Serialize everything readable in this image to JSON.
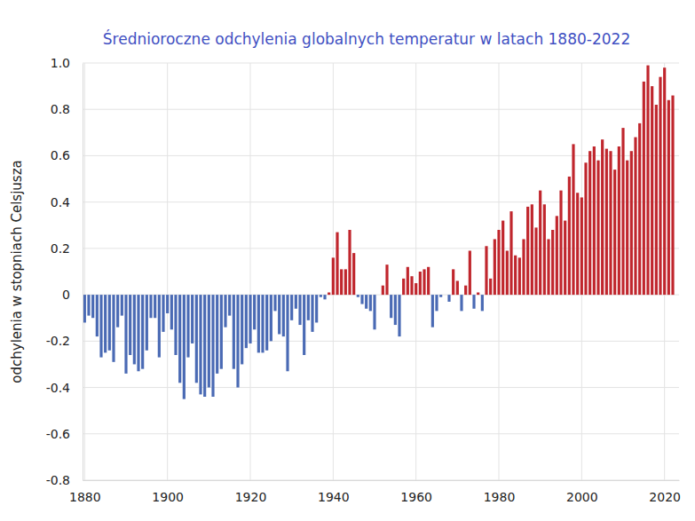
{
  "chart_data": {
    "type": "bar",
    "title": "Średnioroczne odchylenia globalnych temperatur w latach 1880-2022",
    "y_label": "odchylenia w stopniach Celsjusza",
    "x": [
      1880,
      1881,
      1882,
      1883,
      1884,
      1885,
      1886,
      1887,
      1888,
      1889,
      1890,
      1891,
      1892,
      1893,
      1894,
      1895,
      1896,
      1897,
      1898,
      1899,
      1900,
      1901,
      1902,
      1903,
      1904,
      1905,
      1906,
      1907,
      1908,
      1909,
      1910,
      1911,
      1912,
      1913,
      1914,
      1915,
      1916,
      1917,
      1918,
      1919,
      1920,
      1921,
      1922,
      1923,
      1924,
      1925,
      1926,
      1927,
      1928,
      1929,
      1930,
      1931,
      1932,
      1933,
      1934,
      1935,
      1936,
      1937,
      1938,
      1939,
      1940,
      1941,
      1942,
      1943,
      1944,
      1945,
      1946,
      1947,
      1948,
      1949,
      1950,
      1951,
      1952,
      1953,
      1954,
      1955,
      1956,
      1957,
      1958,
      1959,
      1960,
      1961,
      1962,
      1963,
      1964,
      1965,
      1966,
      1967,
      1968,
      1969,
      1970,
      1971,
      1972,
      1973,
      1974,
      1975,
      1976,
      1977,
      1978,
      1979,
      1980,
      1981,
      1982,
      1983,
      1984,
      1985,
      1986,
      1987,
      1988,
      1989,
      1990,
      1991,
      1992,
      1993,
      1994,
      1995,
      1996,
      1997,
      1998,
      1999,
      2000,
      2001,
      2002,
      2003,
      2004,
      2005,
      2006,
      2007,
      2008,
      2009,
      2010,
      2011,
      2012,
      2013,
      2014,
      2015,
      2016,
      2017,
      2018,
      2019,
      2020,
      2021,
      2022
    ],
    "values": [
      -0.12,
      -0.09,
      -0.1,
      -0.18,
      -0.27,
      -0.25,
      -0.24,
      -0.29,
      -0.14,
      -0.09,
      -0.34,
      -0.26,
      -0.3,
      -0.33,
      -0.32,
      -0.24,
      -0.1,
      -0.1,
      -0.27,
      -0.16,
      -0.08,
      -0.15,
      -0.26,
      -0.38,
      -0.45,
      -0.27,
      -0.21,
      -0.38,
      -0.43,
      -0.44,
      -0.4,
      -0.44,
      -0.34,
      -0.32,
      -0.14,
      -0.09,
      -0.32,
      -0.4,
      -0.3,
      -0.23,
      -0.21,
      -0.15,
      -0.25,
      -0.25,
      -0.24,
      -0.2,
      -0.07,
      -0.17,
      -0.18,
      -0.33,
      -0.11,
      -0.06,
      -0.13,
      -0.26,
      -0.11,
      -0.16,
      -0.12,
      -0.01,
      -0.02,
      0.01,
      0.16,
      0.27,
      0.11,
      0.11,
      0.28,
      0.18,
      -0.01,
      -0.04,
      -0.06,
      -0.07,
      -0.15,
      0.0,
      0.04,
      0.13,
      -0.1,
      -0.13,
      -0.18,
      0.07,
      0.12,
      0.08,
      0.05,
      0.1,
      0.11,
      0.12,
      -0.14,
      -0.07,
      -0.01,
      0.0,
      -0.03,
      0.11,
      0.06,
      -0.07,
      0.04,
      0.19,
      -0.06,
      0.01,
      -0.07,
      0.21,
      0.07,
      0.24,
      0.28,
      0.32,
      0.19,
      0.36,
      0.17,
      0.16,
      0.24,
      0.38,
      0.39,
      0.29,
      0.45,
      0.39,
      0.24,
      0.28,
      0.34,
      0.45,
      0.32,
      0.51,
      0.65,
      0.44,
      0.42,
      0.57,
      0.62,
      0.64,
      0.58,
      0.67,
      0.63,
      0.62,
      0.54,
      0.64,
      0.72,
      0.58,
      0.62,
      0.68,
      0.74,
      0.92,
      0.99,
      0.9,
      0.82,
      0.94,
      0.98,
      0.84,
      0.86
    ],
    "colors": [
      "#4a6ab4",
      "#4a6ab4",
      "#4a6ab4",
      "#4a6ab4",
      "#4a6ab4",
      "#4a6ab4",
      "#4a6ab4",
      "#4a6ab4",
      "#4a6ab4",
      "#4a6ab4",
      "#4a6ab4",
      "#4a6ab4",
      "#4a6ab4",
      "#4a6ab4",
      "#4a6ab4",
      "#4a6ab4",
      "#4a6ab4",
      "#4a6ab4",
      "#4a6ab4",
      "#4a6ab4",
      "#4a6ab4",
      "#4a6ab4",
      "#4a6ab4",
      "#4a6ab4",
      "#4a6ab4",
      "#4a6ab4",
      "#4a6ab4",
      "#4a6ab4",
      "#4a6ab4",
      "#4a6ab4",
      "#4a6ab4",
      "#4a6ab4",
      "#4a6ab4",
      "#4a6ab4",
      "#4a6ab4",
      "#4a6ab4",
      "#4a6ab4",
      "#4a6ab4",
      "#4a6ab4",
      "#4a6ab4",
      "#4a6ab4",
      "#4a6ab4",
      "#4a6ab4",
      "#4a6ab4",
      "#4a6ab4",
      "#4a6ab4",
      "#4a6ab4",
      "#4a6ab4",
      "#4a6ab4",
      "#4a6ab4",
      "#4a6ab4",
      "#4a6ab4",
      "#4a6ab4",
      "#4a6ab4",
      "#4a6ab4",
      "#4a6ab4",
      "#4a6ab4",
      "#4a6ab4",
      "#4a6ab4",
      "#c0262d",
      "#c0262d",
      "#c0262d",
      "#c0262d",
      "#c0262d",
      "#c0262d",
      "#c0262d",
      "#4a6ab4",
      "#4a6ab4",
      "#4a6ab4",
      "#4a6ab4",
      "#4a6ab4",
      "#c0262d",
      "#c0262d",
      "#c0262d",
      "#4a6ab4",
      "#4a6ab4",
      "#4a6ab4",
      "#c0262d",
      "#c0262d",
      "#c0262d",
      "#c0262d",
      "#c0262d",
      "#c0262d",
      "#c0262d",
      "#4a6ab4",
      "#4a6ab4",
      "#4a6ab4",
      "#c0262d",
      "#4a6ab4",
      "#c0262d",
      "#c0262d",
      "#4a6ab4",
      "#c0262d",
      "#c0262d",
      "#4a6ab4",
      "#c0262d",
      "#4a6ab4",
      "#c0262d",
      "#c0262d",
      "#c0262d",
      "#c0262d",
      "#c0262d",
      "#c0262d",
      "#c0262d",
      "#c0262d",
      "#c0262d",
      "#c0262d",
      "#c0262d",
      "#c0262d",
      "#c0262d",
      "#c0262d",
      "#c0262d",
      "#c0262d",
      "#c0262d",
      "#c0262d",
      "#c0262d",
      "#c0262d",
      "#c0262d",
      "#c0262d",
      "#c0262d",
      "#c0262d",
      "#c0262d",
      "#c0262d",
      "#c0262d",
      "#c0262d",
      "#c0262d",
      "#c0262d",
      "#c0262d",
      "#c0262d",
      "#c0262d",
      "#c0262d",
      "#c0262d",
      "#c0262d",
      "#c0262d",
      "#c0262d",
      "#c0262d",
      "#c0262d",
      "#c0262d",
      "#c0262d",
      "#c0262d",
      "#c0262d",
      "#c0262d",
      "#c0262d"
    ],
    "xlim": [
      1879.5,
      2023.5
    ],
    "xticks": [
      1880,
      1900,
      1920,
      1940,
      1960,
      1980,
      2000,
      2020
    ],
    "ylim": [
      -0.8,
      1.0
    ],
    "yticks": [
      -0.8,
      -0.6,
      -0.4,
      -0.2,
      0,
      0.2,
      0.4,
      0.6,
      0.8,
      {
        "value": 1.0,
        "label": "1.0"
      }
    ],
    "grid": true
  }
}
